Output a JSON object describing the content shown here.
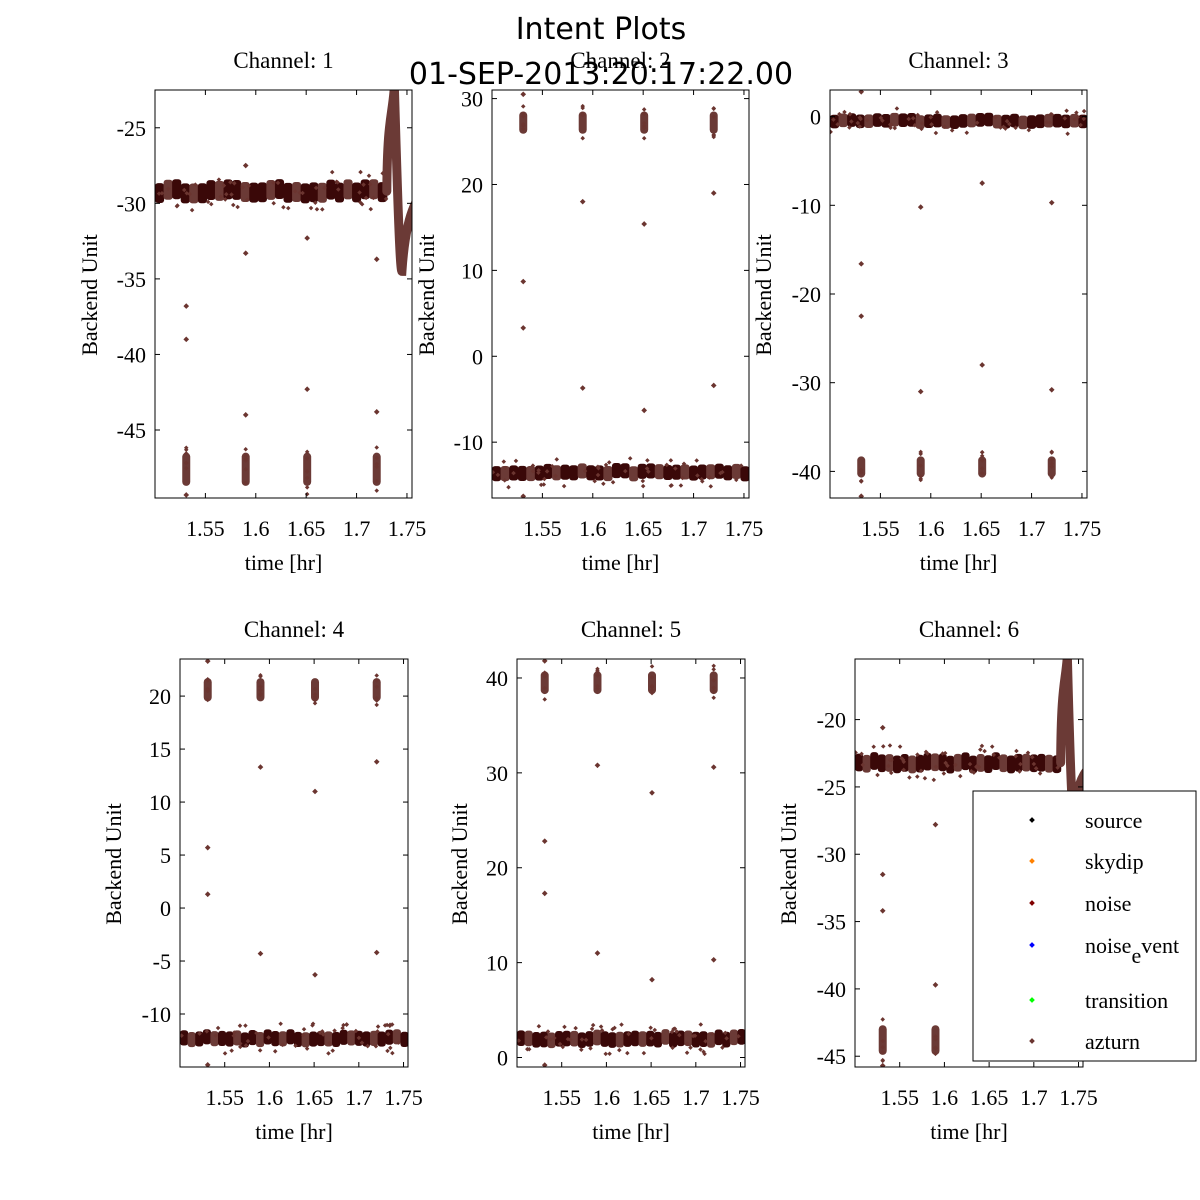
{
  "figure": {
    "title": "Intent Plots",
    "subtitle": "01-SEP-2013:20:17:22.00"
  },
  "colors": {
    "source": "#000000",
    "skydip": "#ff8000",
    "noise": "#800000",
    "noise_event": "#0000ff",
    "transition": "#00ff00",
    "azturn": "#6b3530",
    "band_dark": "#3a0808",
    "band_light": "#6b3a36"
  },
  "chart_data": [
    {
      "type": "scatter",
      "title": "Channel: 1",
      "xlabel": "time [hr]",
      "ylabel": "Backend Unit",
      "xlim": [
        1.5,
        1.755
      ],
      "ylim": [
        -49.5,
        -22.5
      ],
      "xticks": [
        1.55,
        1.6,
        1.65,
        1.7,
        1.75
      ],
      "xtick_labels": [
        "1.55",
        "1.6",
        "1.65",
        "1.7",
        "1.75"
      ],
      "yticks": [
        -25,
        -30,
        -35,
        -40,
        -45
      ],
      "ytick_labels": [
        "-25",
        "-30",
        "-35",
        "-40",
        "-45"
      ],
      "band": {
        "level": -29.2,
        "spread": 1.2,
        "x_end": 1.73
      },
      "peak": {
        "x": 1.7335,
        "top": -22.3,
        "dip": -34.5,
        "x_dip": 1.745
      },
      "clusters": {
        "x": [
          1.531,
          1.59,
          1.651,
          1.72
        ],
        "center": -47.6,
        "half_height": 1.1
      },
      "outliers": [
        {
          "x": 1.531,
          "y": -36.8
        },
        {
          "x": 1.531,
          "y": -39.0
        },
        {
          "x": 1.59,
          "y": -33.3
        },
        {
          "x": 1.59,
          "y": -44.0
        },
        {
          "x": 1.651,
          "y": -32.3
        },
        {
          "x": 1.651,
          "y": -42.3
        },
        {
          "x": 1.72,
          "y": -33.7
        },
        {
          "x": 1.72,
          "y": -43.8
        },
        {
          "x": 1.531,
          "y": -49.3
        },
        {
          "x": 1.59,
          "y": -27.5
        }
      ]
    },
    {
      "type": "scatter",
      "title": "Channel: 2",
      "xlabel": "time [hr]",
      "ylabel": "Backend Unit",
      "xlim": [
        1.5,
        1.755
      ],
      "ylim": [
        -16.5,
        31
      ],
      "xticks": [
        1.55,
        1.6,
        1.65,
        1.7,
        1.75
      ],
      "xtick_labels": [
        "1.55",
        "1.6",
        "1.65",
        "1.7",
        "1.75"
      ],
      "yticks": [
        30,
        20,
        10,
        0,
        -10
      ],
      "ytick_labels": [
        "30",
        "20",
        "10",
        "0",
        "-10"
      ],
      "band": {
        "level": -13.5,
        "spread": 1.6,
        "x_end": 1.755
      },
      "peak": null,
      "clusters": {
        "x": [
          1.531,
          1.59,
          1.651,
          1.72
        ],
        "center": 27.2,
        "half_height": 1.3
      },
      "outliers": [
        {
          "x": 1.531,
          "y": 8.7
        },
        {
          "x": 1.531,
          "y": 3.3
        },
        {
          "x": 1.59,
          "y": 18.0
        },
        {
          "x": 1.59,
          "y": -3.7
        },
        {
          "x": 1.651,
          "y": 15.4
        },
        {
          "x": 1.651,
          "y": -6.3
        },
        {
          "x": 1.72,
          "y": 19.0
        },
        {
          "x": 1.72,
          "y": -3.4
        },
        {
          "x": 1.531,
          "y": 30.5
        },
        {
          "x": 1.531,
          "y": -16.3
        }
      ]
    },
    {
      "type": "scatter",
      "title": "Channel: 3",
      "xlabel": "time [hr]",
      "ylabel": "Backend Unit",
      "xlim": [
        1.5,
        1.755
      ],
      "ylim": [
        -43,
        3
      ],
      "xticks": [
        1.55,
        1.6,
        1.65,
        1.7,
        1.75
      ],
      "xtick_labels": [
        "1.55",
        "1.6",
        "1.65",
        "1.7",
        "1.75"
      ],
      "yticks": [
        0,
        -10,
        -20,
        -30,
        -40
      ],
      "ytick_labels": [
        "0",
        "-10",
        "-20",
        "-30",
        "-40"
      ],
      "band": {
        "level": -0.5,
        "spread": 1.4,
        "x_end": 1.755
      },
      "peak": null,
      "clusters": {
        "x": [
          1.531,
          1.59,
          1.651,
          1.72
        ],
        "center": -39.5,
        "half_height": 1.2
      },
      "outliers": [
        {
          "x": 1.531,
          "y": -16.6
        },
        {
          "x": 1.531,
          "y": -22.5
        },
        {
          "x": 1.59,
          "y": -10.2
        },
        {
          "x": 1.59,
          "y": -31.0
        },
        {
          "x": 1.651,
          "y": -7.5
        },
        {
          "x": 1.651,
          "y": -28.0
        },
        {
          "x": 1.72,
          "y": -9.7
        },
        {
          "x": 1.72,
          "y": -30.8
        },
        {
          "x": 1.531,
          "y": 2.8
        },
        {
          "x": 1.531,
          "y": -42.8
        }
      ]
    },
    {
      "type": "scatter",
      "title": "Channel: 4",
      "xlabel": "time [hr]",
      "ylabel": "Backend Unit",
      "xlim": [
        1.5,
        1.755
      ],
      "ylim": [
        -15,
        23.5
      ],
      "xticks": [
        1.55,
        1.6,
        1.65,
        1.7,
        1.75
      ],
      "xtick_labels": [
        "1.55",
        "1.6",
        "1.65",
        "1.7",
        "1.75"
      ],
      "yticks": [
        20,
        15,
        10,
        5,
        0,
        -5,
        -10
      ],
      "ytick_labels": [
        "20",
        "15",
        "10",
        "5",
        "0",
        "-5",
        "-10"
      ],
      "band": {
        "level": -12.3,
        "spread": 1.3,
        "x_end": 1.755
      },
      "peak": null,
      "clusters": {
        "x": [
          1.531,
          1.59,
          1.651,
          1.72
        ],
        "center": 20.6,
        "half_height": 1.1
      },
      "outliers": [
        {
          "x": 1.531,
          "y": 5.7
        },
        {
          "x": 1.531,
          "y": 1.3
        },
        {
          "x": 1.59,
          "y": 13.3
        },
        {
          "x": 1.59,
          "y": -4.3
        },
        {
          "x": 1.651,
          "y": 11.0
        },
        {
          "x": 1.651,
          "y": -6.3
        },
        {
          "x": 1.72,
          "y": 13.8
        },
        {
          "x": 1.72,
          "y": -4.2
        },
        {
          "x": 1.531,
          "y": 23.3
        },
        {
          "x": 1.531,
          "y": -14.8
        }
      ]
    },
    {
      "type": "scatter",
      "title": "Channel: 5",
      "xlabel": "time [hr]",
      "ylabel": "Backend Unit",
      "xlim": [
        1.5,
        1.755
      ],
      "ylim": [
        -1,
        42
      ],
      "xticks": [
        1.55,
        1.6,
        1.65,
        1.7,
        1.75
      ],
      "xtick_labels": [
        "1.55",
        "1.6",
        "1.65",
        "1.7",
        "1.75"
      ],
      "yticks": [
        40,
        30,
        20,
        10,
        0
      ],
      "ytick_labels": [
        "40",
        "30",
        "20",
        "10",
        "0"
      ],
      "band": {
        "level": 2.0,
        "spread": 1.5,
        "x_end": 1.755
      },
      "peak": null,
      "clusters": {
        "x": [
          1.531,
          1.59,
          1.651,
          1.72
        ],
        "center": 39.5,
        "half_height": 1.2
      },
      "outliers": [
        {
          "x": 1.531,
          "y": 22.8
        },
        {
          "x": 1.531,
          "y": 17.3
        },
        {
          "x": 1.59,
          "y": 30.8
        },
        {
          "x": 1.59,
          "y": 11.0
        },
        {
          "x": 1.651,
          "y": 27.9
        },
        {
          "x": 1.651,
          "y": 8.2
        },
        {
          "x": 1.72,
          "y": 30.6
        },
        {
          "x": 1.72,
          "y": 10.3
        },
        {
          "x": 1.531,
          "y": 41.8
        },
        {
          "x": 1.531,
          "y": -0.8
        }
      ]
    },
    {
      "type": "scatter",
      "title": "Channel: 6",
      "xlabel": "time [hr]",
      "ylabel": "Backend Unit",
      "xlim": [
        1.5,
        1.755
      ],
      "ylim": [
        -45.8,
        -15.5
      ],
      "xticks": [
        1.55,
        1.6,
        1.65,
        1.7,
        1.75
      ],
      "xtick_labels": [
        "1.55",
        "1.6",
        "1.65",
        "1.7",
        "1.75"
      ],
      "yticks": [
        -20,
        -25,
        -30,
        -35,
        -40,
        -45
      ],
      "ytick_labels": [
        "-20",
        "-25",
        "-30",
        "-35",
        "-40",
        "-45"
      ],
      "band": {
        "level": -23.2,
        "spread": 1.2,
        "x_end": 1.73
      },
      "peak": {
        "x": 1.7335,
        "top": -15.3,
        "dip": -27.5,
        "x_dip": 1.745
      },
      "clusters": {
        "x": [
          1.531,
          1.59
        ],
        "center": -43.8,
        "half_height": 1.1
      },
      "outliers": [
        {
          "x": 1.531,
          "y": -31.5
        },
        {
          "x": 1.531,
          "y": -34.2
        },
        {
          "x": 1.59,
          "y": -27.8
        },
        {
          "x": 1.59,
          "y": -39.7
        },
        {
          "x": 1.531,
          "y": -20.6
        },
        {
          "x": 1.531,
          "y": -45.7
        }
      ]
    }
  ],
  "legend": [
    {
      "key": "source",
      "label": "source"
    },
    {
      "key": "skydip",
      "label": "skydip"
    },
    {
      "key": "noise",
      "label": "noise"
    },
    {
      "key": "noise_event",
      "label": "noise",
      "sub": "e",
      "sup": "vent"
    },
    {
      "key": "transition",
      "label": "transition"
    },
    {
      "key": "azturn",
      "label": "azturn"
    }
  ]
}
